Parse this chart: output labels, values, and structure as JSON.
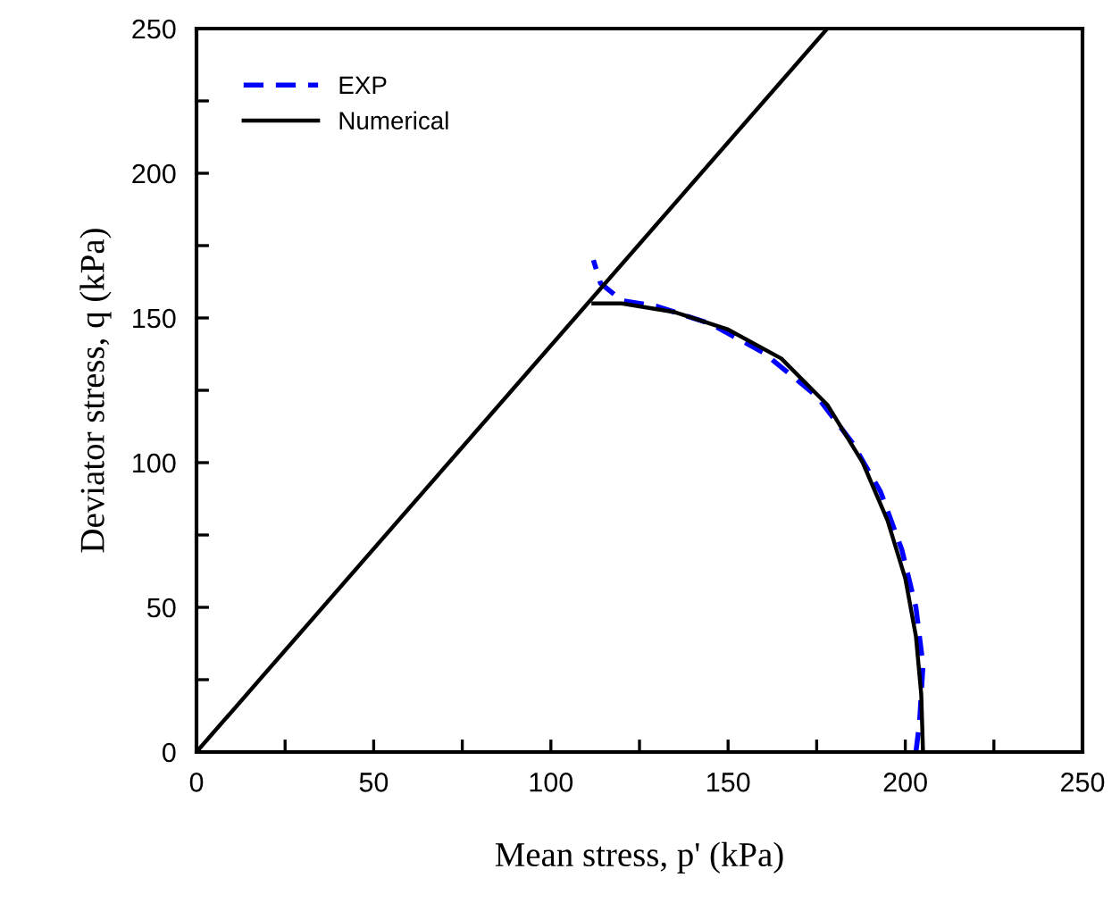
{
  "chart_data": {
    "type": "line",
    "xlabel": "Mean stress, p' (kPa)",
    "ylabel": "Deviator stress, q (kPa)",
    "xlim": [
      0,
      250
    ],
    "ylim": [
      0,
      250
    ],
    "xticks": [
      0,
      {
        "value": 25,
        "label": null
      },
      50,
      {
        "value": 75,
        "label": null
      },
      100,
      {
        "value": 125,
        "label": null
      },
      150,
      {
        "value": 175,
        "label": null
      },
      200,
      {
        "value": 225,
        "label": null
      },
      250
    ],
    "yticks": [
      0,
      {
        "value": 25,
        "label": null
      },
      50,
      {
        "value": 75,
        "label": null
      },
      100,
      {
        "value": 125,
        "label": null
      },
      150,
      {
        "value": 175,
        "label": null
      },
      200,
      {
        "value": 225,
        "label": null
      },
      250
    ],
    "grid": false,
    "legend": "top left",
    "marker": "none",
    "series": [
      {
        "name": "EXP",
        "color": "#0000ff",
        "line_style": "dashed",
        "x": [
          203,
          204,
          205,
          203,
          199,
          193,
          185,
          175,
          160,
          145,
          130,
          120,
          114,
          112
        ],
        "values": [
          0,
          10,
          30,
          50,
          70,
          90,
          107,
          123,
          138,
          148,
          154,
          156,
          162,
          170
        ]
      },
      {
        "name": "Numerical",
        "color": "#000000",
        "line_style": "solid",
        "x": [
          205,
          204.5,
          203,
          200,
          195,
          188,
          178,
          165,
          150,
          135,
          120,
          112
        ],
        "values": [
          0,
          20,
          40,
          60,
          80,
          100,
          120,
          136,
          146,
          152,
          155,
          155
        ]
      },
      {
        "color": "#000000",
        "line_style": "solid",
        "x": [
          0,
          178
        ],
        "values": [
          0,
          250
        ]
      }
    ]
  }
}
